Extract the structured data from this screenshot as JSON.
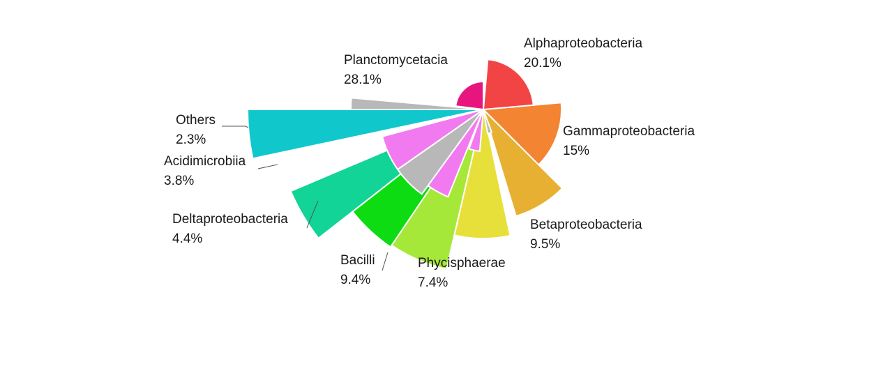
{
  "chart_data": {
    "type": "pie",
    "variant": "nightingale-rose",
    "title": "",
    "slices": [
      {
        "name": "Planctomycetacia",
        "label": "Planctomycetacia",
        "value_text": "28.1%",
        "value": 28.1,
        "color": "#e8157e"
      },
      {
        "name": "Alphaproteobacteria",
        "label": "Alphaproteobacteria",
        "value_text": "20.1%",
        "value": 20.1,
        "color": "#f24444"
      },
      {
        "name": "Gammaproteobacteria",
        "label": "Gammaproteobacteria",
        "value_text": "15%",
        "value": 15.0,
        "color": "#f28432"
      },
      {
        "name": "Betaproteobacteria",
        "label": "Betaproteobacteria",
        "value_text": "9.5%",
        "value": 9.5,
        "color": "#e8b032"
      },
      {
        "name": "Phycisphaerae",
        "label": "Phycisphaerae",
        "value_text": "7.4%",
        "value": 7.4,
        "color": "#e8e03a"
      },
      {
        "name": "Bacilli",
        "label": "Bacilli",
        "value_text": "9.4%",
        "value": 9.4,
        "color": "#a6e83a"
      },
      {
        "name": "Deltaproteobacteria",
        "label": "Deltaproteobacteria",
        "value_text": "4.4%",
        "value": 4.4,
        "color": "#0ddc12"
      },
      {
        "name": "Acidimicrobiia",
        "label": "Acidimicrobiia",
        "value_text": "3.8%",
        "value": 3.8,
        "color": "#12d496"
      },
      {
        "name": "Others",
        "label": "Others",
        "value_text": "2.3%",
        "value": 2.3,
        "color": "#10c8cc"
      }
    ],
    "unlabeled_slices": [
      {
        "color": "#f27af0"
      },
      {
        "color": "#b8b8b8"
      }
    ]
  }
}
